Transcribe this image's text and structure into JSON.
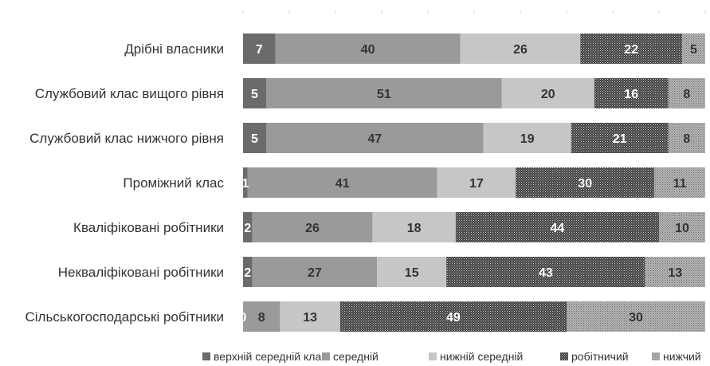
{
  "chart_data": {
    "type": "bar",
    "orientation": "horizontal",
    "stacked": true,
    "percent_stacked": true,
    "title": "",
    "xlabel": "",
    "ylabel": "",
    "xlim": [
      0,
      100
    ],
    "grid": false,
    "legend_position": "bottom",
    "categories": [
      "Дрібні власники",
      "Службовий клас вищого рівня",
      "Службовий клас нижчого рівня",
      "Проміжний клас",
      "Кваліфіковані робітники",
      "Некваліфіковані робітники",
      "Сільськогосподарські робітники"
    ],
    "series": [
      {
        "name": "верхній середній клас",
        "values": [
          7,
          5,
          5,
          1,
          2,
          2,
          0
        ],
        "color": "#6b6b6b",
        "pattern": "solid"
      },
      {
        "name": "середній",
        "values": [
          40,
          51,
          47,
          41,
          26,
          27,
          8
        ],
        "color": "#9a9a9a",
        "pattern": "solid"
      },
      {
        "name": "нижній середній",
        "values": [
          26,
          20,
          19,
          17,
          18,
          15,
          13
        ],
        "color": "#c6c6c6",
        "pattern": "solid"
      },
      {
        "name": "робітничий",
        "values": [
          22,
          16,
          21,
          30,
          44,
          43,
          49
        ],
        "color": "#555555",
        "pattern": "dense-dots"
      },
      {
        "name": "нижчий",
        "values": [
          5,
          8,
          8,
          11,
          10,
          13,
          30
        ],
        "color": "#9a9a9a",
        "pattern": "light-dots"
      }
    ]
  }
}
